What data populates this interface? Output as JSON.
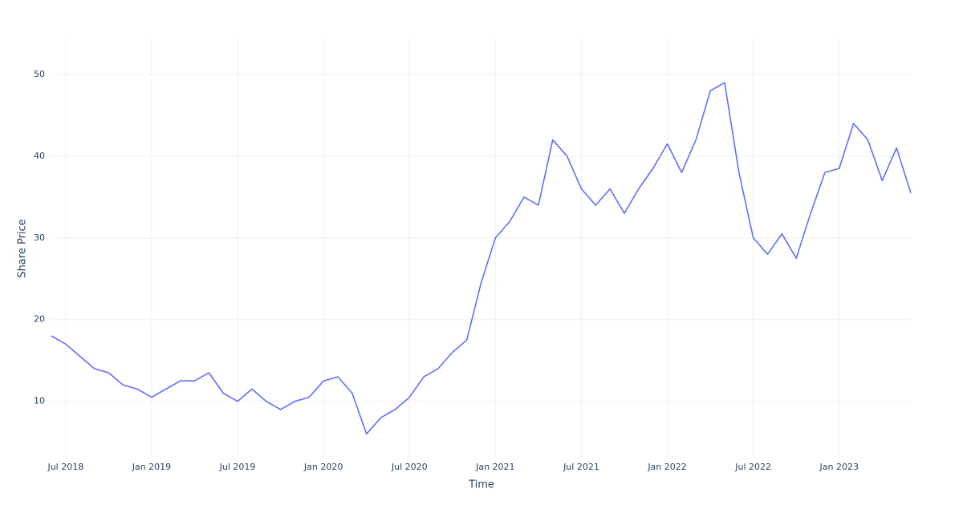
{
  "chart_data": {
    "type": "line",
    "x_label": "Time",
    "y_label": "Share Price",
    "x": [
      "2018-06",
      "2018-07",
      "2018-08",
      "2018-09",
      "2018-10",
      "2018-11",
      "2018-12",
      "2019-01",
      "2019-02",
      "2019-03",
      "2019-04",
      "2019-05",
      "2019-06",
      "2019-07",
      "2019-08",
      "2019-09",
      "2019-10",
      "2019-11",
      "2019-12",
      "2020-01",
      "2020-02",
      "2020-03",
      "2020-04",
      "2020-05",
      "2020-06",
      "2020-07",
      "2020-08",
      "2020-09",
      "2020-10",
      "2020-11",
      "2020-12",
      "2021-01",
      "2021-02",
      "2021-03",
      "2021-04",
      "2021-05",
      "2021-06",
      "2021-07",
      "2021-08",
      "2021-09",
      "2021-10",
      "2021-11",
      "2021-12",
      "2022-01",
      "2022-02",
      "2022-03",
      "2022-04",
      "2022-05",
      "2022-06",
      "2022-07",
      "2022-08",
      "2022-09",
      "2022-10",
      "2022-11",
      "2022-12",
      "2023-01",
      "2023-02",
      "2023-03",
      "2023-04",
      "2023-05",
      "2023-06"
    ],
    "values": [
      18,
      17,
      15.5,
      14,
      13.5,
      12,
      11.5,
      10.5,
      11.5,
      12.5,
      12.5,
      13.5,
      11,
      10,
      11.5,
      10,
      9,
      10,
      10.5,
      12.5,
      13,
      11,
      6,
      8,
      9,
      10.5,
      13,
      14,
      16,
      17.5,
      24.5,
      30,
      32,
      35,
      34,
      42,
      40,
      36,
      34,
      36,
      33,
      36,
      38.5,
      41.5,
      38,
      42,
      48,
      49,
      38,
      30,
      28,
      30.5,
      27.5,
      33,
      38,
      38.5,
      44,
      42,
      37,
      41,
      35.5
    ],
    "color": "#636efa",
    "xlim": [
      "2018-06",
      "2023-06"
    ],
    "xticks": [
      {
        "value": "2018-07",
        "label": "Jul 2018"
      },
      {
        "value": "2019-01",
        "label": "Jan 2019"
      },
      {
        "value": "2019-07",
        "label": "Jul 2019"
      },
      {
        "value": "2020-01",
        "label": "Jan 2020"
      },
      {
        "value": "2020-07",
        "label": "Jul 2020"
      },
      {
        "value": "2021-01",
        "label": "Jan 2021"
      },
      {
        "value": "2021-07",
        "label": "Jul 2021"
      },
      {
        "value": "2022-01",
        "label": "Jan 2022"
      },
      {
        "value": "2022-07",
        "label": "Jul 2022"
      },
      {
        "value": "2023-01",
        "label": "Jan 2023"
      }
    ],
    "ylim": [
      3.2,
      54.5
    ],
    "yticks": [
      10,
      20,
      30,
      40,
      50
    ],
    "grid": true
  }
}
